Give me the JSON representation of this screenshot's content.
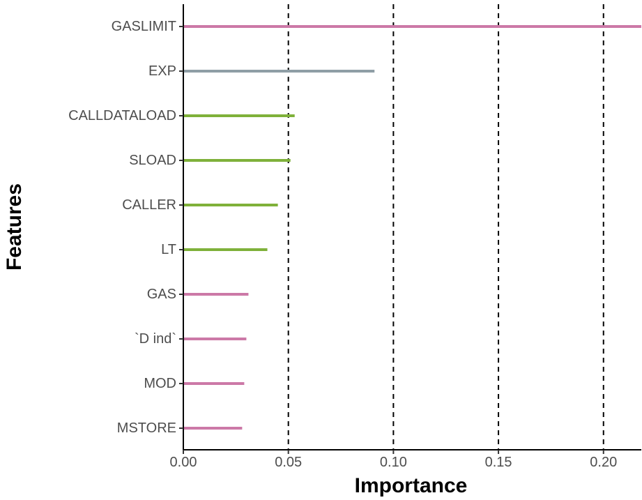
{
  "chart_data": {
    "type": "bar",
    "orientation": "horizontal",
    "style": "lollipop-lines",
    "xlabel": "Importance",
    "ylabel": "Features",
    "xlim": [
      0.0,
      0.218
    ],
    "xticks": [
      0.0,
      0.05,
      0.1,
      0.15,
      0.2
    ],
    "xtick_labels": [
      "0.00",
      "0.05",
      "0.10",
      "0.15",
      "0.20"
    ],
    "reference_lines": [
      0.05,
      0.1,
      0.15,
      0.2
    ],
    "grid": false,
    "categories": [
      "GASLIMIT",
      "EXP",
      "CALLDATALOAD",
      "SLOAD",
      "CALLER",
      "LT",
      "GAS",
      "`D ind`",
      "MOD",
      "MSTORE"
    ],
    "values": [
      0.218,
      0.091,
      0.053,
      0.051,
      0.045,
      0.04,
      0.031,
      0.03,
      0.029,
      0.028
    ],
    "colors": [
      "#cc79a7",
      "#8f9ea6",
      "#7fb13a",
      "#7fb13a",
      "#7fb13a",
      "#7fb13a",
      "#cc79a7",
      "#cc79a7",
      "#cc79a7",
      "#cc79a7"
    ]
  }
}
